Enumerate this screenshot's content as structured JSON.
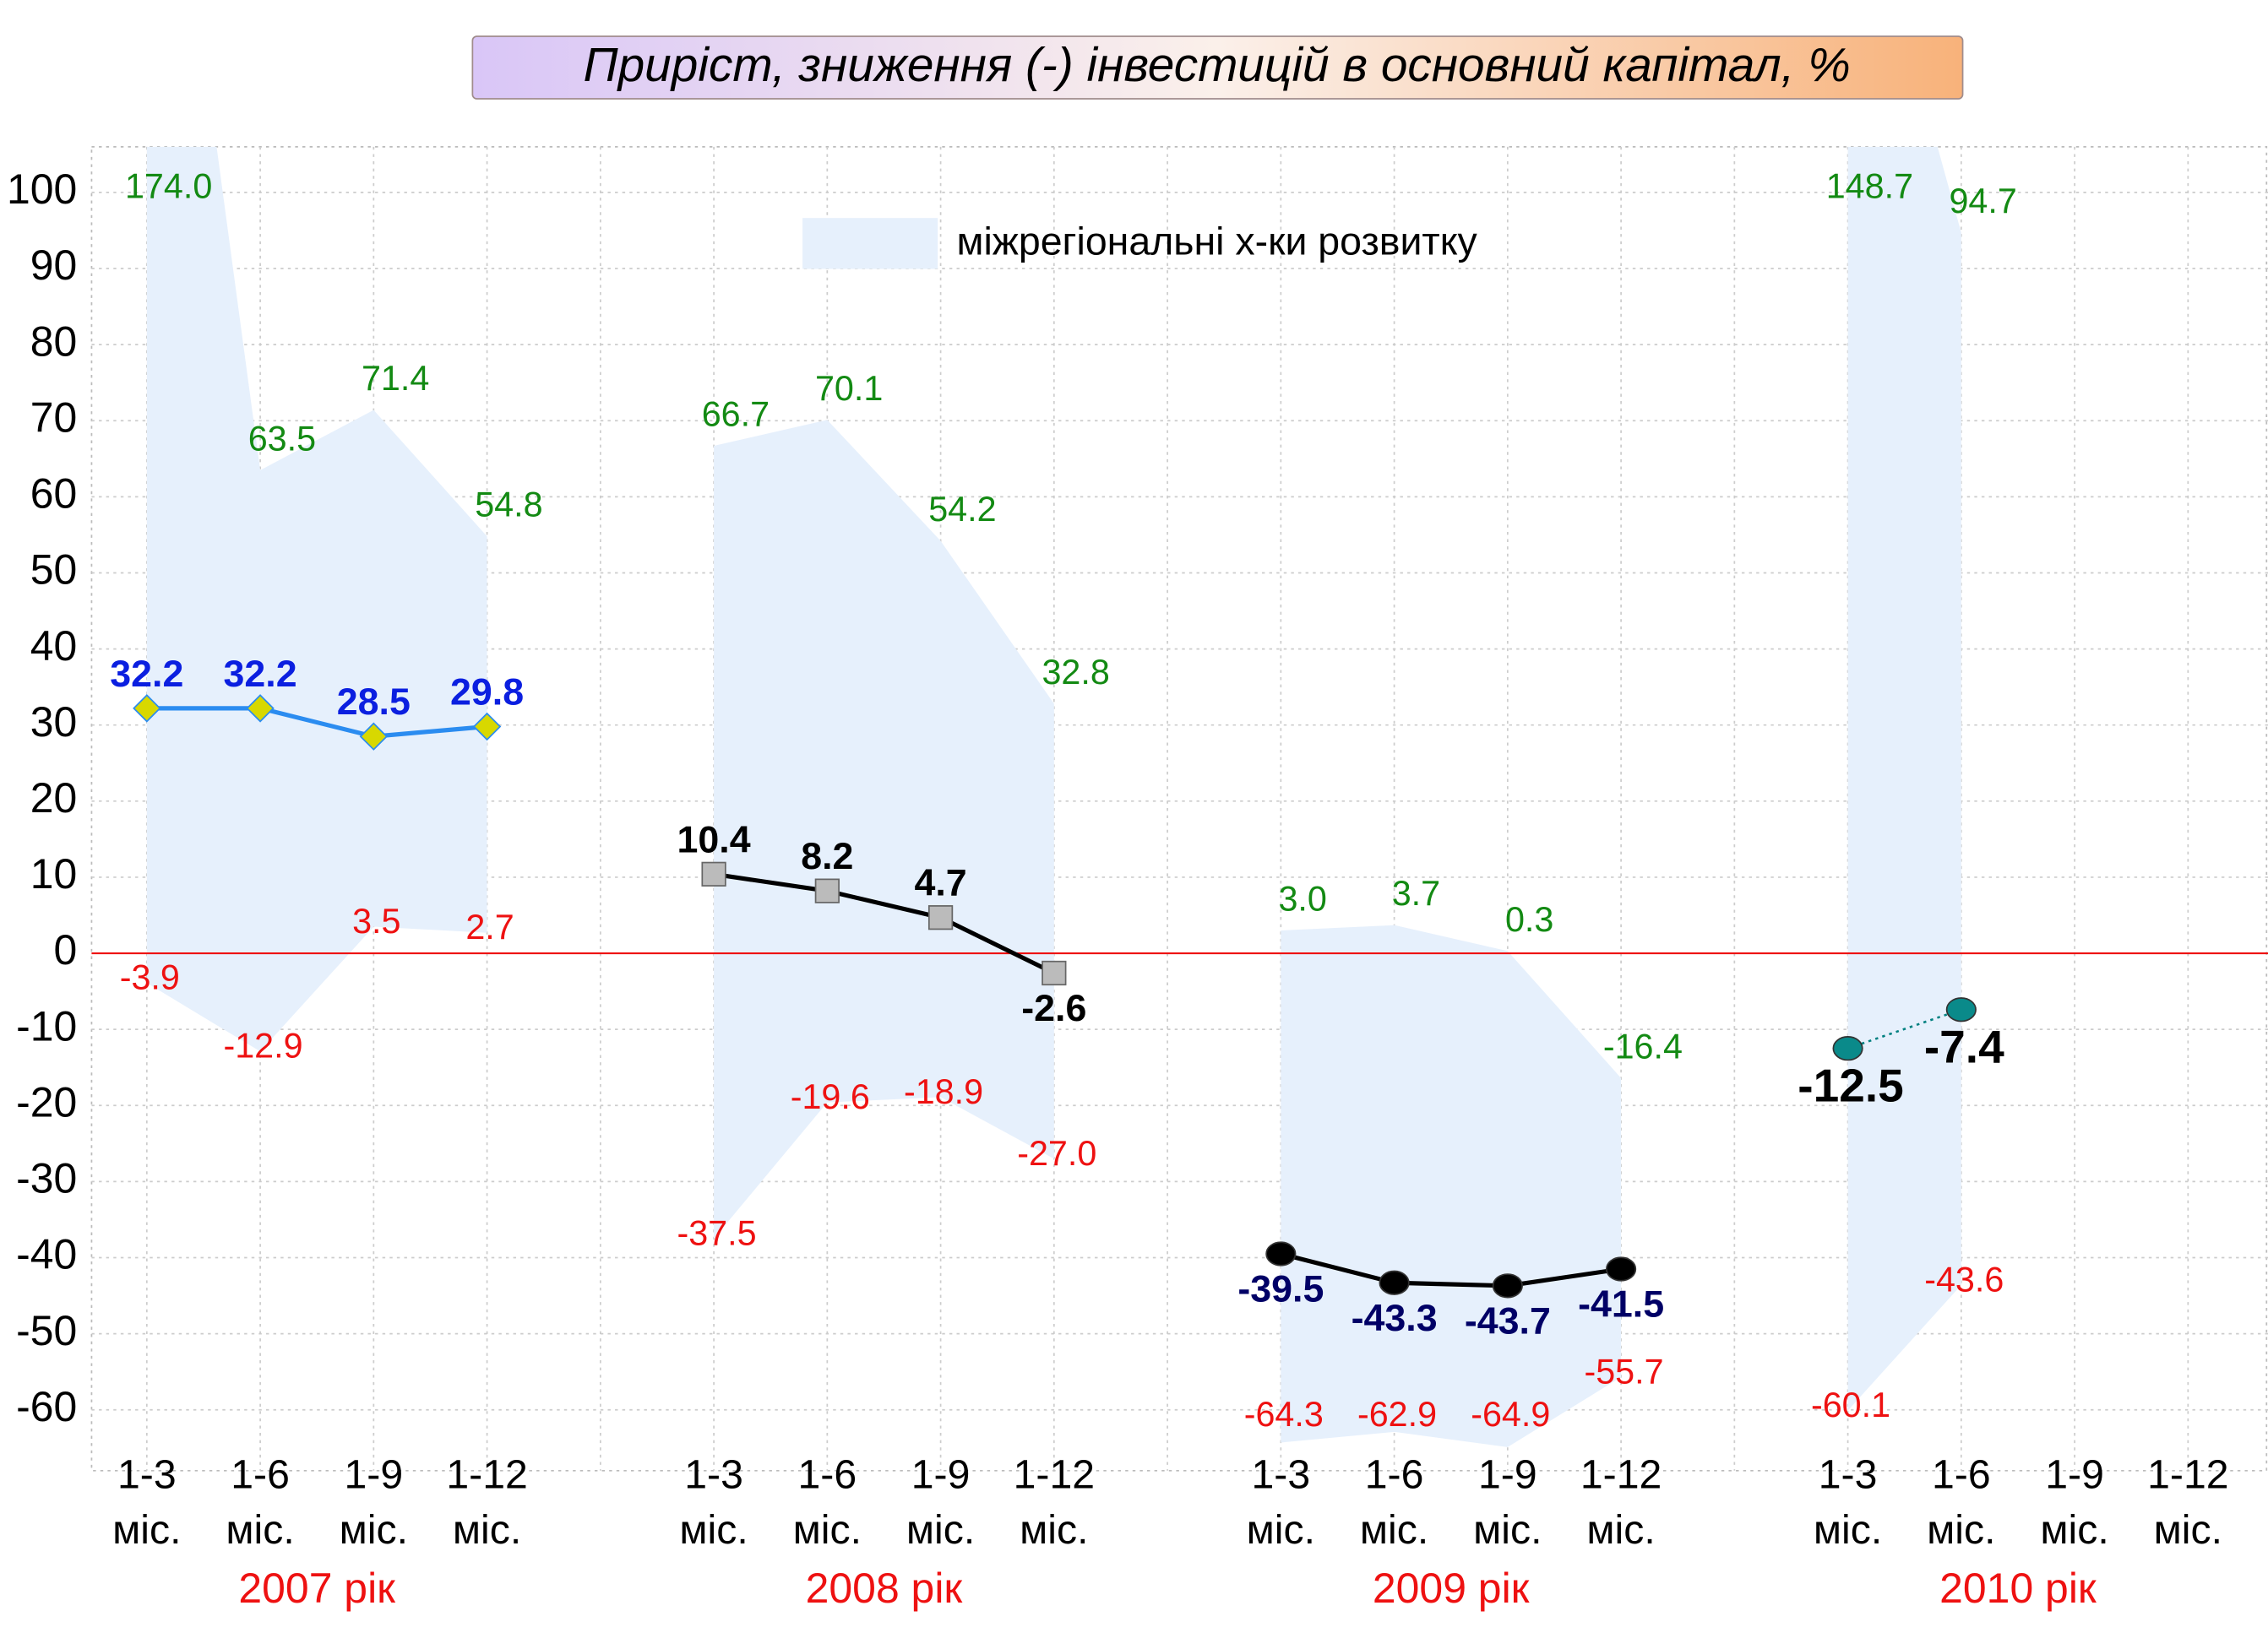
{
  "chart_data": {
    "type": "line",
    "title": "Приріст, зниження (-) інвестицій в основний капітал, %",
    "categories": [
      "1-3 міс.",
      "1-6 міс.",
      "1-9 міс.",
      "1-12 міс.",
      null,
      "1-3 міс.",
      "1-6 міс.",
      "1-9 міс.",
      "1-12 міс.",
      null,
      "1-3 міс.",
      "1-6 міс.",
      "1-9 міс.",
      "1-12 міс.",
      null,
      "1-3 міс.",
      "1-6 міс.",
      "1-9 міс.",
      "1-12 міс."
    ],
    "groups": [
      "2007 рік",
      "2008 рік",
      "2009 рік",
      "2010 рік"
    ],
    "ylim": [
      -68,
      106
    ],
    "yticks": [
      -60,
      -50,
      -40,
      -30,
      -20,
      -10,
      0,
      10,
      20,
      30,
      40,
      50,
      60,
      70,
      80,
      90,
      100
    ],
    "grid": true,
    "band": {
      "name": "міжрегіональні х-ки розвитку",
      "color": "#e6f0fc",
      "upper": [
        174.0,
        63.5,
        71.4,
        54.8,
        null,
        66.7,
        70.1,
        54.2,
        32.8,
        null,
        3.0,
        3.7,
        0.3,
        -16.4,
        null,
        148.7,
        94.7,
        null,
        null
      ],
      "upper_labels": [
        "174.0",
        "63.5",
        "71.4",
        "54.8",
        null,
        "66.7",
        "70.1",
        "54.2",
        "32.8",
        null,
        "3.0",
        "3.7",
        "0.3",
        "-16.4",
        null,
        "148.7",
        "94.7",
        null,
        null
      ],
      "upper_color": "#138a13",
      "lower": [
        -3.9,
        -12.9,
        3.5,
        2.7,
        null,
        -37.5,
        -19.6,
        -18.9,
        -27.0,
        null,
        -64.3,
        -62.9,
        -64.9,
        -55.7,
        null,
        -60.1,
        -43.6,
        null,
        null
      ],
      "lower_labels": [
        "-3.9",
        "-12.9",
        "3.5",
        "2.7",
        null,
        "-37.5",
        "-19.6",
        "-18.9",
        "-27.0",
        null,
        "-64.3",
        "-62.9",
        "-64.9",
        "-55.7",
        null,
        "-60.1",
        "-43.6",
        null,
        null
      ],
      "lower_color": "#ee1111"
    },
    "series": [
      {
        "color": "#2b8cf0",
        "marker": "diamond",
        "marker_color": "#d8d800",
        "label_color": "#0b1fe0",
        "values": [
          32.2,
          32.2,
          28.5,
          29.8,
          null,
          null,
          null,
          null,
          null,
          null,
          null,
          null,
          null,
          null,
          null,
          null,
          null,
          null,
          null
        ]
      },
      {
        "color": "#000000",
        "marker": "square",
        "marker_color": "#bbbbbb",
        "label_color": "#000000",
        "values": [
          null,
          null,
          null,
          null,
          null,
          10.4,
          8.2,
          4.7,
          -2.6,
          null,
          null,
          null,
          null,
          null,
          null,
          null,
          null,
          null,
          null
        ]
      },
      {
        "color": "#000000",
        "marker": "circle",
        "marker_color": "#000000",
        "label_color": "#000066",
        "values": [
          null,
          null,
          null,
          null,
          null,
          null,
          null,
          null,
          null,
          null,
          -39.5,
          -43.3,
          -43.7,
          -41.5,
          null,
          null,
          null,
          null,
          null
        ]
      },
      {
        "color": "#008080",
        "marker": "circle",
        "marker_color": "#0a8a8a",
        "label_color": "#000000",
        "dashed": true,
        "values": [
          null,
          null,
          null,
          null,
          null,
          null,
          null,
          null,
          null,
          null,
          null,
          null,
          null,
          null,
          null,
          -12.5,
          -7.4,
          null,
          null
        ]
      }
    ],
    "zero_line_color": "#ee1111"
  }
}
